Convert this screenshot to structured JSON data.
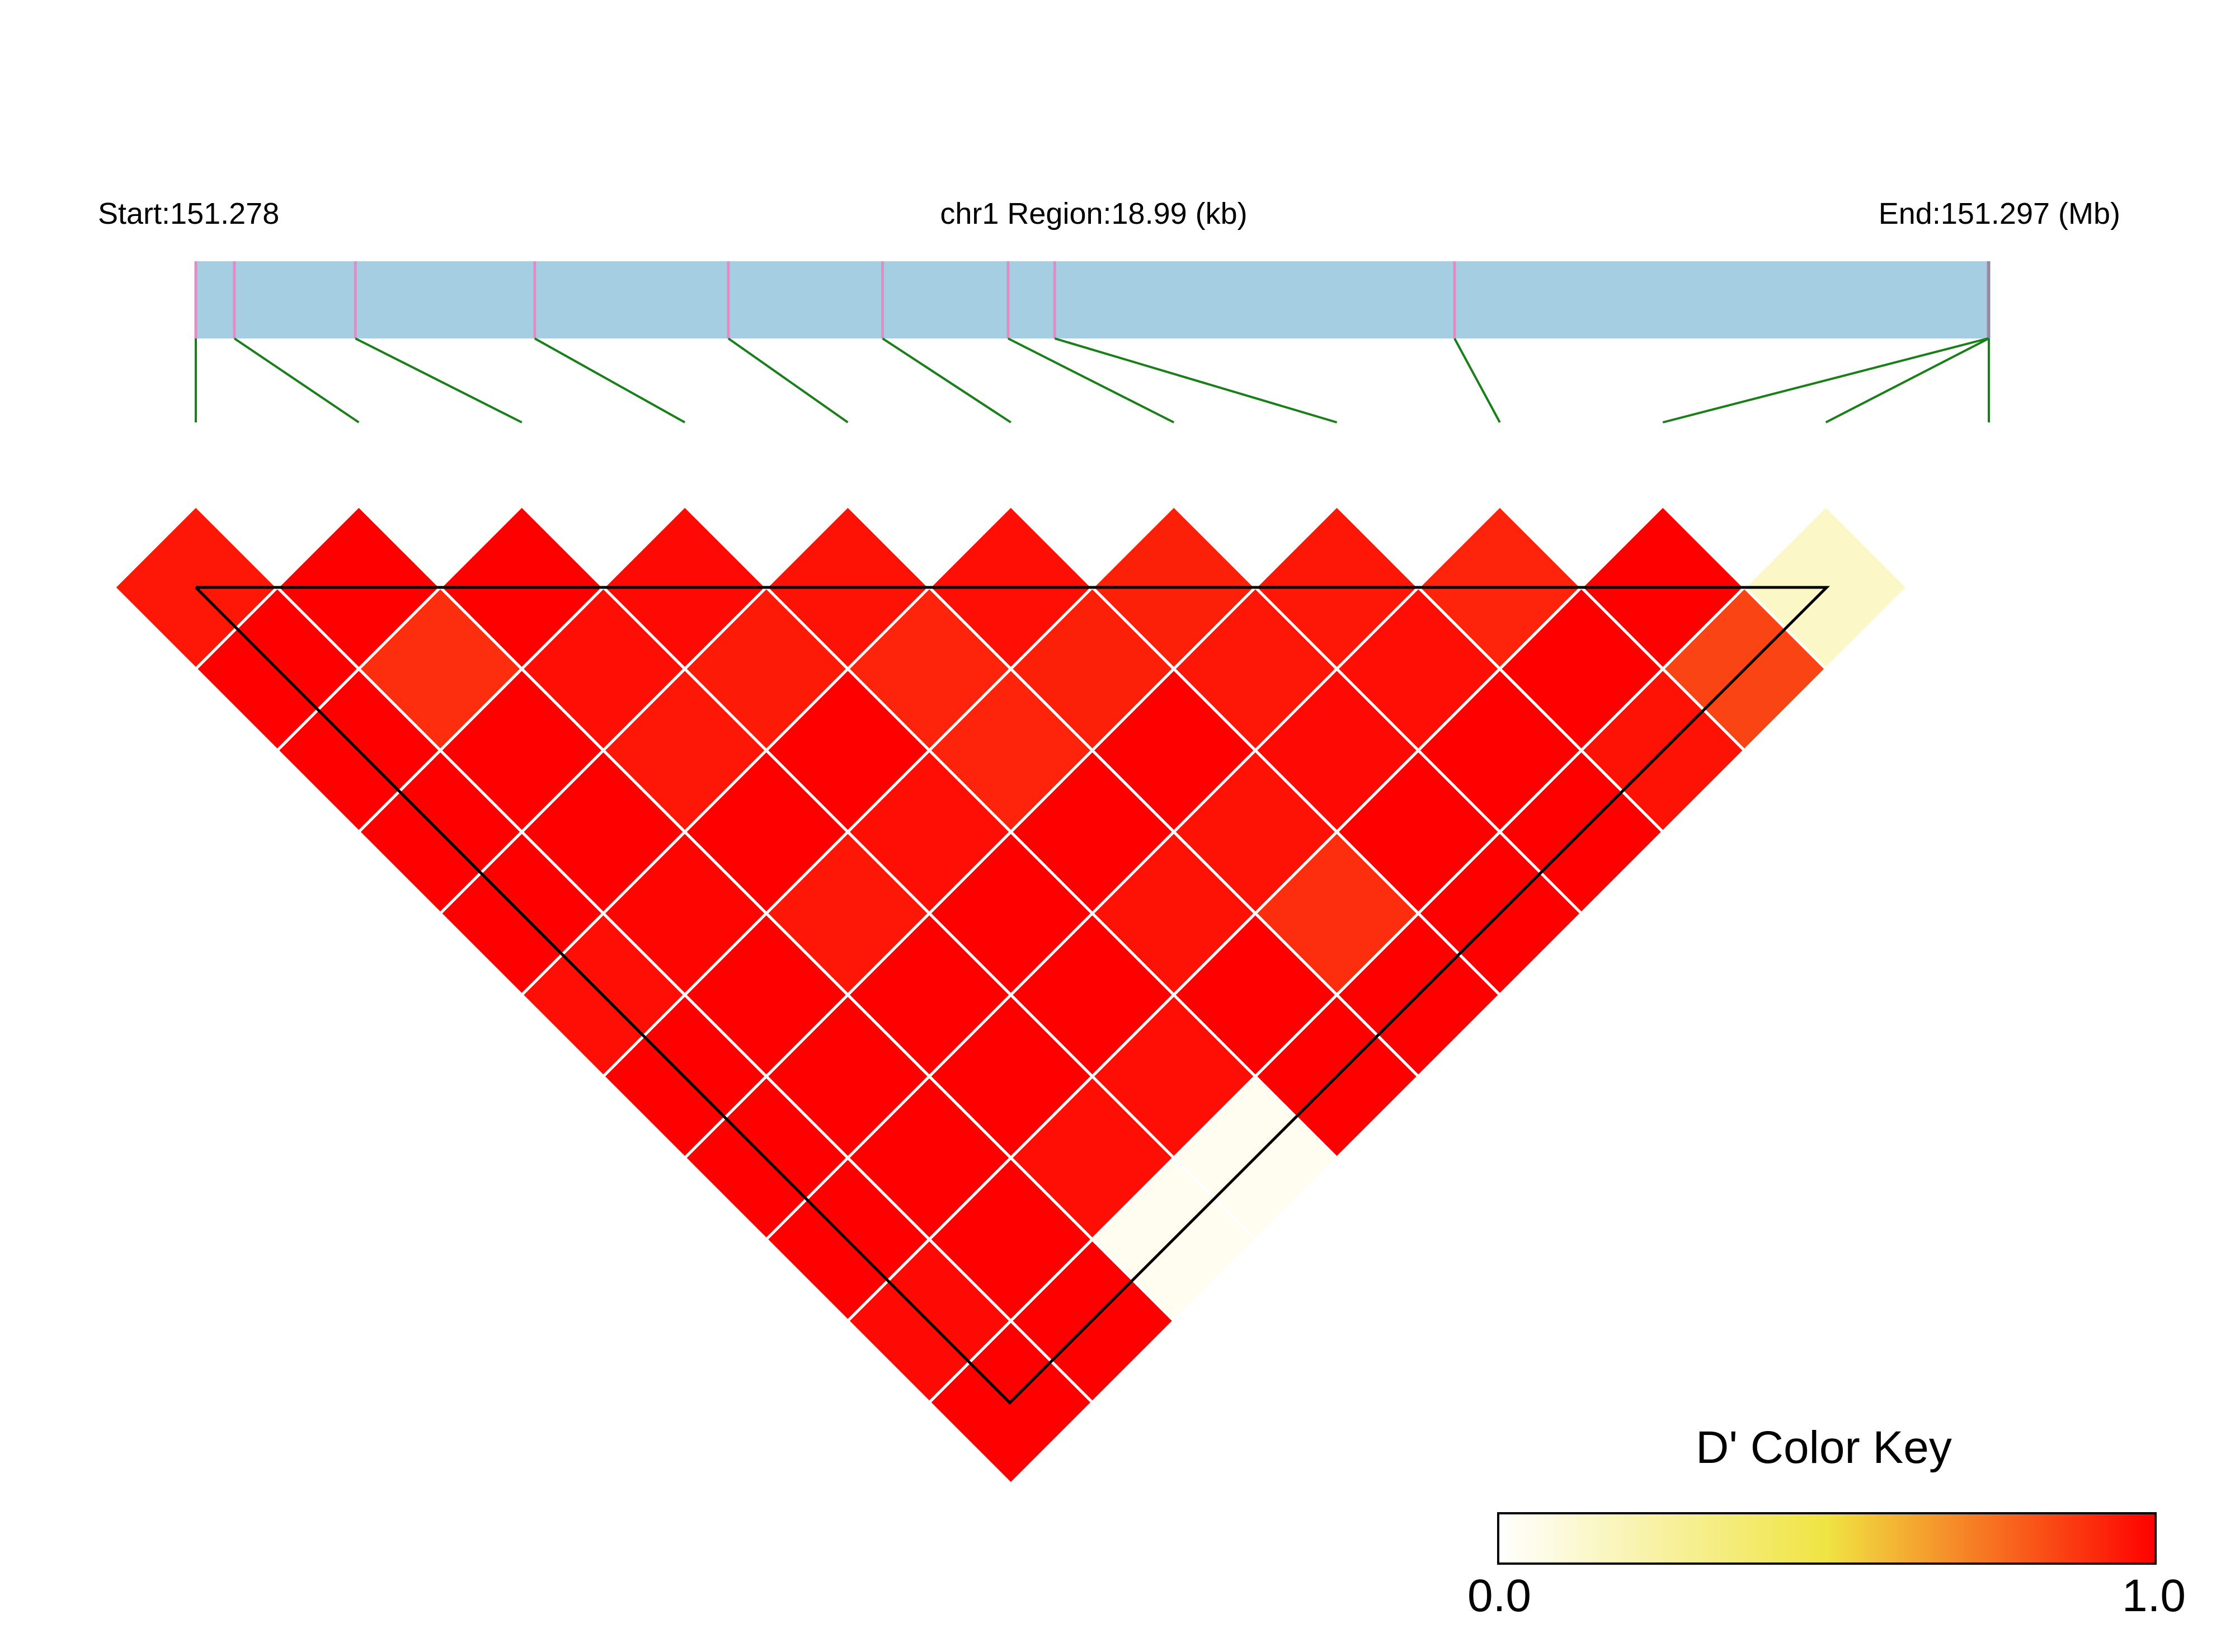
{
  "header": {
    "start_label": "Start:151.278",
    "region_label": "chr1 Region:18.99 (kb)",
    "end_label": "End:151.297 (Mb)"
  },
  "colors": {
    "track": "#a6cee3",
    "marker": "#e78ac3",
    "connector": "#1a7f1a",
    "outline": "#000000",
    "cell_border": "#ffffff"
  },
  "chart_data": {
    "type": "heatmap",
    "title": "",
    "snp_count": 12,
    "snp_positions_mb": [
      151.278,
      151.2784,
      151.2797,
      151.2816,
      151.2837,
      151.2853,
      151.2866,
      151.2871,
      151.2913,
      151.2967,
      151.297,
      151.29699
    ],
    "ld_matrix_dprime": [
      [
        0.95,
        1.0,
        1.0,
        0.98,
        0.96,
        0.97,
        0.93,
        0.95,
        0.92,
        1.0,
        0.15
      ],
      [
        1.0,
        0.9,
        0.97,
        0.94,
        0.92,
        0.93,
        0.95,
        0.97,
        1.0,
        0.85
      ],
      [
        1.0,
        1.0,
        0.95,
        1.0,
        0.92,
        1.0,
        0.98,
        1.0,
        0.96
      ],
      [
        1.0,
        1.0,
        1.0,
        0.97,
        1.0,
        0.96,
        1.0,
        1.0
      ],
      [
        1.0,
        0.99,
        0.95,
        1.0,
        0.96,
        0.9,
        1.0
      ],
      [
        0.97,
        1.0,
        1.0,
        1.0,
        1.0,
        1.0
      ],
      [
        1.0,
        1.0,
        1.0,
        0.97,
        1.0
      ],
      [
        1.0,
        1.0,
        0.97,
        0.04
      ],
      [
        1.0,
        1.0,
        0.04
      ],
      [
        0.98,
        1.0
      ],
      [
        1.0
      ]
    ],
    "color_scale": {
      "title": "D' Color Key",
      "min": 0.0,
      "max": 1.0,
      "min_label": "0.0",
      "max_label": "1.0",
      "stops": [
        "#ffffff",
        "#f0e442",
        "#ff0000"
      ]
    }
  }
}
